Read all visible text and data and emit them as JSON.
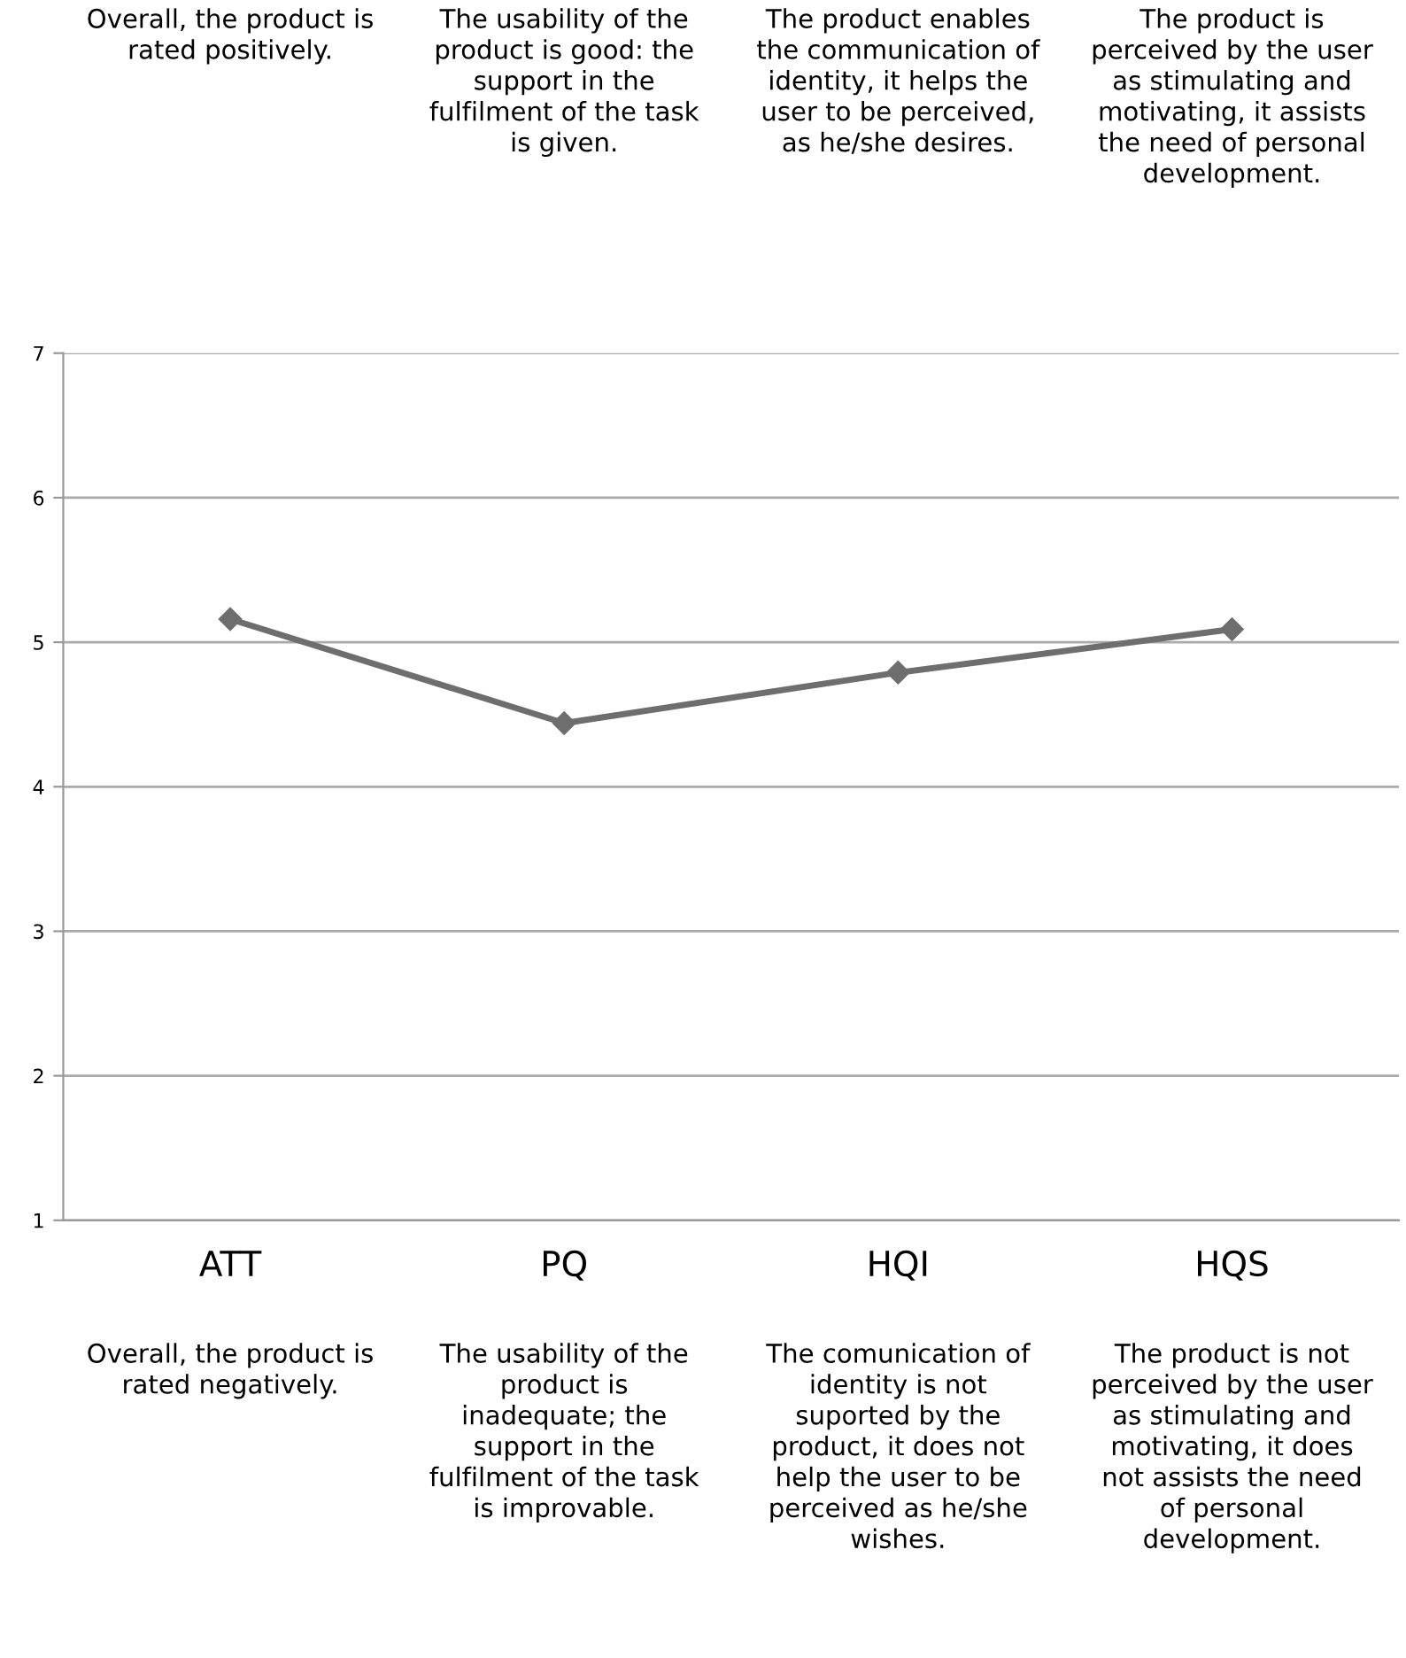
{
  "chart_data": {
    "type": "line",
    "categories": [
      "ATT",
      "PQ",
      "HQI",
      "HQS"
    ],
    "series": [
      {
        "color": "#6e6e6e",
        "values": [
          5.16,
          4.44,
          4.79,
          5.09
        ]
      }
    ],
    "marker": "diamond",
    "line_style": "solid",
    "ylim": [
      1,
      7
    ],
    "yticks": [
      1,
      2,
      3,
      4,
      5,
      6,
      7
    ],
    "grid": "y",
    "legend": false,
    "annotations": [
      "Overall, the product is\nrated positively.",
      "The usability of the\nproduct is good: the\nsupport in the\nfulfilment of the task\nis given.",
      "The product enables\nthe communication of\nidentity, it helps the\nuser to be perceived,\nas he/she desires.",
      "The product is\nperceived by the user\nas stimulating and\nmotivating, it assists\nthe need of personal\ndevelopment.",
      "Overall, the product is\nrated negatively.",
      "The usability of the\nproduct is\ninadequate; the\nsupport in the\nfulfilment of the task\nis improvable.",
      "The comunication of\nidentity is not\nsuported by the\nproduct, it does not\nhelp the user to be\nperceived as he/she\nwishes.",
      "The product is not\nperceived by the user\nas stimulating and\nmotivating, it does\nnot assists the need\nof personal\ndevelopment."
    ]
  }
}
